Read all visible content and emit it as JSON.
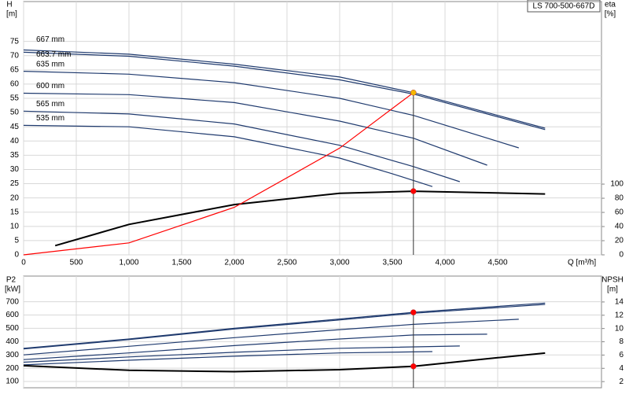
{
  "chart_data": [
    {
      "type": "line",
      "title": "LS 700-500-667D",
      "ylabel": "H",
      "yunit": "[m]",
      "y2label": "eta",
      "y2unit": "[%]",
      "xlabel": "Q [m³/h]",
      "xlim": [
        0,
        5485
      ],
      "ylim": [
        0,
        89
      ],
      "y2lim": [
        0,
        358
      ],
      "xticks": [
        0,
        500,
        {
          "value": 1000,
          "label": "1,000"
        },
        {
          "value": 1500,
          "label": "1,500"
        },
        {
          "value": 2000,
          "label": "2,000"
        },
        {
          "value": 2500,
          "label": "2,500"
        },
        {
          "value": 3000,
          "label": "3,000"
        },
        {
          "value": 3500,
          "label": "3,500"
        },
        {
          "value": 4000,
          "label": "4,000"
        },
        {
          "value": 4500,
          "label": "4,500"
        }
      ],
      "yticks": [
        0,
        5,
        10,
        15,
        20,
        25,
        30,
        35,
        40,
        45,
        50,
        55,
        60,
        65,
        70,
        75
      ],
      "y2ticks": [
        0,
        20,
        40,
        60,
        80,
        100
      ],
      "grid": true,
      "series": [
        {
          "name": "667 mm",
          "color": "#1f3a6e",
          "x": [
            0,
            1000,
            2000,
            3000,
            3700,
            4500,
            4950
          ],
          "values": [
            72,
            70.5,
            67,
            62.5,
            57,
            49,
            44.5
          ]
        },
        {
          "name": "663.7 mm",
          "color": "#1f3a6e",
          "x": [
            0,
            1000,
            2000,
            3000,
            3700,
            4500,
            4950
          ],
          "values": [
            71.2,
            69.8,
            66.3,
            61.5,
            56.5,
            48.5,
            44
          ]
        },
        {
          "name": "635 mm",
          "color": "#1f3a6e",
          "x": [
            0,
            1000,
            2000,
            3000,
            3700,
            4700
          ],
          "values": [
            64.5,
            63.5,
            60.5,
            55,
            49,
            37.6
          ]
        },
        {
          "name": "600 mm",
          "color": "#1f3a6e",
          "x": [
            0,
            1000,
            2000,
            3000,
            3700,
            4400
          ],
          "values": [
            56.8,
            56.3,
            53.5,
            47,
            41,
            31.5
          ]
        },
        {
          "name": "565 mm",
          "color": "#1f3a6e",
          "x": [
            0,
            1000,
            2000,
            3000,
            3700,
            4140
          ],
          "values": [
            50.5,
            49.5,
            46,
            38.5,
            31,
            25.7
          ]
        },
        {
          "name": "535 mm",
          "color": "#1f3a6e",
          "x": [
            0,
            1000,
            2000,
            3000,
            3500,
            3880
          ],
          "values": [
            45.5,
            45,
            41.5,
            34,
            28.5,
            24
          ]
        },
        {
          "color": "#000000",
          "axis": "y2",
          "x": [
            300,
            1000,
            2000,
            3000,
            3700,
            4950
          ],
          "values": [
            13,
            43,
            71,
            87,
            90,
            86
          ]
        },
        {
          "color": "#ff0000",
          "x": [
            0,
            1000,
            2000,
            3000,
            3700
          ],
          "values": [
            0,
            4.2,
            16.7,
            37.5,
            57
          ]
        }
      ],
      "markers": [
        {
          "x": 3700,
          "y": 57,
          "color": "#f5b800"
        },
        {
          "x": 3700,
          "y": 90,
          "axis": "y2",
          "color": "#ff0000"
        }
      ]
    },
    {
      "type": "line",
      "ylabel": "P2",
      "yunit": "[kW]",
      "y2label": "NPSH",
      "y2unit": "[m]",
      "xlim": [
        0,
        5485
      ],
      "ylim": [
        53,
        893
      ],
      "y2lim": [
        1.07,
        17.9
      ],
      "xticks": [
        0,
        500,
        1000,
        1500,
        2000,
        2500,
        3000,
        3500,
        4000,
        4500
      ],
      "yticks": [
        100,
        200,
        300,
        400,
        500,
        600,
        700
      ],
      "y2ticks": [
        2,
        4,
        6,
        8,
        10,
        12,
        14
      ],
      "grid": true,
      "series": [
        {
          "color": "#1f3a6e",
          "x": [
            0,
            1000,
            2000,
            3000,
            3700,
            4950
          ],
          "values": [
            350,
            420,
            500,
            570,
            620,
            690
          ]
        },
        {
          "color": "#1f3a6e",
          "x": [
            0,
            1000,
            2000,
            3000,
            3700,
            4950
          ],
          "values": [
            345,
            415,
            495,
            563,
            613,
            680
          ]
        },
        {
          "color": "#1f3a6e",
          "x": [
            0,
            1000,
            2000,
            3000,
            3700,
            4700
          ],
          "values": [
            300,
            365,
            430,
            490,
            530,
            568
          ]
        },
        {
          "color": "#1f3a6e",
          "x": [
            0,
            1000,
            2000,
            3000,
            3700,
            4400
          ],
          "values": [
            265,
            315,
            370,
            420,
            450,
            456
          ]
        },
        {
          "color": "#1f3a6e",
          "x": [
            0,
            1000,
            2000,
            3000,
            4140
          ],
          "values": [
            245,
            285,
            320,
            350,
            367
          ]
        },
        {
          "color": "#1f3a6e",
          "x": [
            0,
            1000,
            2000,
            3000,
            3880
          ],
          "values": [
            225,
            260,
            290,
            315,
            325
          ]
        },
        {
          "color": "#000000",
          "axis": "y2",
          "x": [
            0,
            1000,
            2000,
            3000,
            3700,
            4500,
            4950
          ],
          "values": [
            4.4,
            3.7,
            3.5,
            3.8,
            4.3,
            5.6,
            6.3
          ]
        }
      ],
      "markers": [
        {
          "x": 3700,
          "y": 620,
          "color": "#ff0000"
        },
        {
          "x": 3700,
          "y": 4.3,
          "axis": "y2",
          "color": "#ff0000"
        }
      ]
    }
  ]
}
